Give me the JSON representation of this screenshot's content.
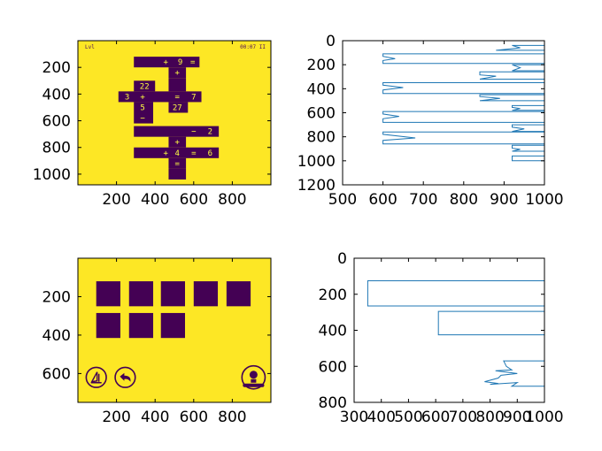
{
  "colors": {
    "yellow": "#fde725",
    "purple": "#440154",
    "line": "#1f77b4",
    "axis": "#000000"
  },
  "chart_data": [
    {
      "type": "heatmap",
      "title": "",
      "xlabel": "",
      "ylabel": "",
      "xlim": [
        0,
        1000
      ],
      "ylim": [
        1080,
        0
      ],
      "xticks": [
        200,
        400,
        600,
        800
      ],
      "yticks": [
        200,
        400,
        600,
        800,
        1000
      ],
      "hud": {
        "left": "Lvl",
        "right": "00:07 II"
      },
      "blocks": [
        {
          "x": 290,
          "y": 120,
          "w": 340,
          "h": 80,
          "parts": [
            {
              "x": 455,
              "t": "+"
            },
            {
              "x": 530,
              "t": "9"
            },
            {
              "x": 595,
              "t": "="
            }
          ]
        },
        {
          "x": 470,
          "y": 200,
          "w": 90,
          "h": 80,
          "parts": [
            {
              "x": 515,
              "t": "+"
            }
          ]
        },
        {
          "x": 470,
          "y": 280,
          "w": 90,
          "h": 100,
          "parts": []
        },
        {
          "x": 290,
          "y": 300,
          "w": 110,
          "h": 80,
          "parts": [
            {
              "x": 345,
              "t": "22"
            }
          ]
        },
        {
          "x": 210,
          "y": 380,
          "w": 430,
          "h": 80,
          "parts": [
            {
              "x": 255,
              "t": "3"
            },
            {
              "x": 335,
              "t": "+"
            },
            {
              "x": 515,
              "t": "="
            },
            {
              "x": 600,
              "t": "7"
            }
          ]
        },
        {
          "x": 290,
          "y": 460,
          "w": 100,
          "h": 80,
          "parts": [
            {
              "x": 335,
              "t": "5"
            }
          ]
        },
        {
          "x": 470,
          "y": 460,
          "w": 100,
          "h": 80,
          "parts": [
            {
              "x": 515,
              "t": "27"
            }
          ]
        },
        {
          "x": 290,
          "y": 540,
          "w": 100,
          "h": 80,
          "parts": [
            {
              "x": 335,
              "t": "−"
            }
          ]
        },
        {
          "x": 290,
          "y": 640,
          "w": 440,
          "h": 80,
          "parts": [
            {
              "x": 600,
              "t": "−"
            },
            {
              "x": 685,
              "t": "2"
            }
          ]
        },
        {
          "x": 470,
          "y": 720,
          "w": 90,
          "h": 80,
          "parts": [
            {
              "x": 515,
              "t": "+"
            }
          ]
        },
        {
          "x": 290,
          "y": 800,
          "w": 440,
          "h": 80,
          "parts": [
            {
              "x": 455,
              "t": "+"
            },
            {
              "x": 515,
              "t": "4"
            },
            {
              "x": 600,
              "t": "="
            },
            {
              "x": 685,
              "t": "6"
            }
          ]
        },
        {
          "x": 470,
          "y": 880,
          "w": 90,
          "h": 80,
          "parts": [
            {
              "x": 515,
              "t": "="
            }
          ]
        },
        {
          "x": 470,
          "y": 960,
          "w": 90,
          "h": 80,
          "parts": []
        }
      ]
    },
    {
      "type": "line",
      "title": "",
      "xlabel": "",
      "ylabel": "",
      "xlim": [
        500,
        1000
      ],
      "ylim": [
        1200,
        0
      ],
      "xticks": [
        500,
        600,
        700,
        800,
        900,
        1000
      ],
      "yticks": [
        0,
        200,
        400,
        600,
        800,
        1000,
        1200
      ],
      "x": [
        1000,
        1000,
        920,
        940,
        880,
        1000,
        1000,
        600,
        600,
        630,
        600,
        600,
        1000,
        1000,
        920,
        940,
        920,
        1000,
        1000,
        840,
        840,
        880,
        840,
        1000,
        1000,
        600,
        600,
        650,
        600,
        600,
        1000,
        1000,
        840,
        840,
        890,
        840,
        1000,
        1000,
        920,
        920,
        940,
        920,
        1000,
        1000,
        600,
        600,
        640,
        600,
        600,
        1000,
        1000,
        920,
        920,
        950,
        920,
        1000,
        1000,
        600,
        600,
        680,
        600,
        600,
        1000,
        1000,
        920,
        920,
        940,
        920,
        1000,
        1000,
        920,
        920,
        1000,
        1000
      ],
      "y": [
        0,
        40,
        40,
        60,
        80,
        80,
        110,
        110,
        130,
        150,
        165,
        190,
        190,
        200,
        200,
        225,
        250,
        250,
        260,
        260,
        285,
        295,
        320,
        320,
        350,
        350,
        370,
        390,
        410,
        440,
        440,
        450,
        450,
        465,
        480,
        500,
        500,
        540,
        540,
        555,
        565,
        580,
        580,
        590,
        590,
        610,
        630,
        650,
        680,
        680,
        700,
        700,
        720,
        735,
        755,
        755,
        760,
        760,
        780,
        810,
        830,
        860,
        860,
        870,
        870,
        895,
        905,
        920,
        920,
        960,
        960,
        1000,
        1000,
        1080
      ]
    },
    {
      "type": "heatmap",
      "title": "",
      "xlabel": "",
      "ylabel": "",
      "xlim": [
        0,
        1000
      ],
      "ylim": [
        750,
        0
      ],
      "xticks": [
        200,
        400,
        600,
        800
      ],
      "yticks": [
        200,
        400,
        600
      ],
      "tiles": [
        {
          "x": 95,
          "y": 120,
          "w": 125,
          "h": 130
        },
        {
          "x": 265,
          "y": 120,
          "w": 125,
          "h": 130
        },
        {
          "x": 430,
          "y": 120,
          "w": 125,
          "h": 130
        },
        {
          "x": 600,
          "y": 120,
          "w": 125,
          "h": 130
        },
        {
          "x": 770,
          "y": 120,
          "w": 125,
          "h": 130
        },
        {
          "x": 95,
          "y": 285,
          "w": 125,
          "h": 130
        },
        {
          "x": 265,
          "y": 285,
          "w": 125,
          "h": 130
        },
        {
          "x": 430,
          "y": 285,
          "w": 125,
          "h": 130
        }
      ],
      "buttons": [
        {
          "name": "hint-icon",
          "cx": 95,
          "cy": 620,
          "r": 52
        },
        {
          "name": "undo-icon",
          "cx": 245,
          "cy": 620,
          "r": 52
        },
        {
          "name": "lightbulb-icon",
          "cx": 910,
          "cy": 620,
          "r": 60
        }
      ]
    },
    {
      "type": "line",
      "title": "",
      "xlabel": "",
      "ylabel": "",
      "xlim": [
        300,
        1000
      ],
      "ylim": [
        800,
        0
      ],
      "xticks": [
        300,
        400,
        500,
        600,
        700,
        800,
        900,
        1000
      ],
      "yticks": [
        0,
        200,
        400,
        600,
        800
      ],
      "x": [
        1000,
        1000,
        350,
        350,
        1000,
        1000,
        610,
        610,
        1000,
        1000,
        850,
        860,
        880,
        820,
        900,
        840,
        830,
        780,
        830,
        800,
        900,
        880,
        1000,
        1000
      ],
      "y": [
        0,
        125,
        125,
        265,
        265,
        295,
        295,
        425,
        425,
        570,
        570,
        600,
        620,
        625,
        640,
        650,
        665,
        685,
        695,
        700,
        690,
        710,
        710,
        750
      ]
    }
  ]
}
